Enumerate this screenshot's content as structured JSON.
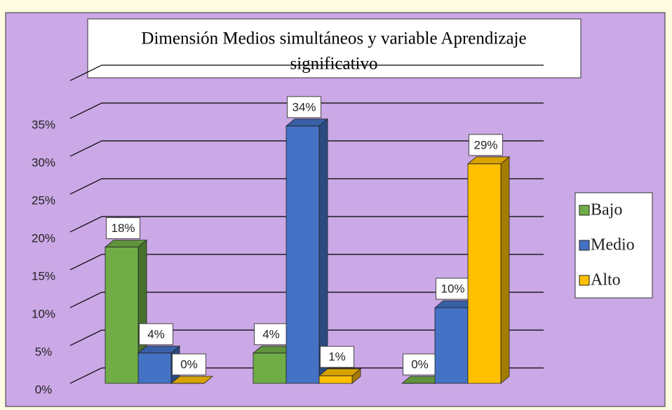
{
  "chart_data": {
    "type": "bar3d",
    "title": "Dimensión Medios simultáneos  y variable Aprendizaje significativo",
    "categories": [
      null,
      null,
      null
    ],
    "series": [
      {
        "name": "Bajo",
        "color": "#70ad47",
        "values": [
          18,
          4,
          0
        ],
        "value_labels": [
          "18%",
          "4%",
          "0%"
        ]
      },
      {
        "name": "Medio",
        "color": "#4472c4",
        "values": [
          4,
          34,
          10
        ],
        "value_labels": [
          "4%",
          "34%",
          "10%"
        ]
      },
      {
        "name": "Alto",
        "color": "#ffc000",
        "values": [
          0,
          1,
          29
        ],
        "value_labels": [
          "0%",
          "1%",
          "29%"
        ]
      }
    ],
    "ylim": [
      0,
      40
    ],
    "yticks": [
      {
        "value": 0,
        "label": "0%"
      },
      {
        "value": 5,
        "label": "5%"
      },
      {
        "value": 10,
        "label": "10%"
      },
      {
        "value": 15,
        "label": "15%"
      },
      {
        "value": 20,
        "label": "20%"
      },
      {
        "value": 25,
        "label": "25%"
      },
      {
        "value": 30,
        "label": "30%"
      },
      {
        "value": 35,
        "label": "35%"
      }
    ],
    "grid": true,
    "legend": "right"
  }
}
